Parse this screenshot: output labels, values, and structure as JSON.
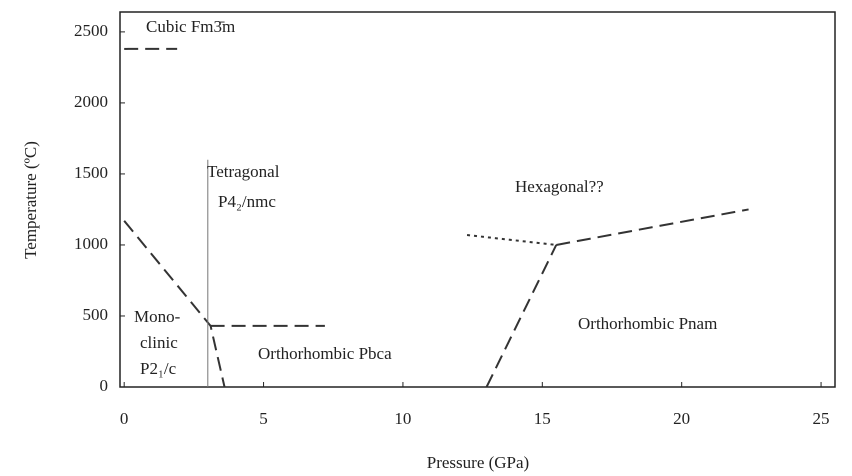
{
  "chart_data": {
    "type": "line",
    "xlabel": "Pressure (GPa)",
    "ylabel": "Temperature (ºC)",
    "xlim": [
      -0.15,
      25.5
    ],
    "ylim": [
      0,
      2640
    ],
    "xticks": [
      0,
      5,
      10,
      15,
      20,
      25
    ],
    "yticks": [
      0,
      500,
      1000,
      1500,
      2000,
      2500
    ],
    "grid": false,
    "series": [
      {
        "color": "#333333",
        "dash": "dashed",
        "x": [
          0,
          1.9
        ],
        "values": [
          2380,
          2380
        ]
      },
      {
        "color": "#333333",
        "dash": "dashed",
        "x": [
          0,
          3.1,
          3.6
        ],
        "values": [
          1170,
          430,
          0
        ]
      },
      {
        "color": "#777777",
        "dash": "solid",
        "x": [
          3,
          3
        ],
        "values": [
          1600,
          0
        ]
      },
      {
        "color": "#333333",
        "dash": "dashed",
        "x": [
          3.1,
          7.2
        ],
        "values": [
          430,
          430
        ]
      },
      {
        "color": "#333333",
        "dash": "dashed",
        "x": [
          13,
          15.5
        ],
        "values": [
          0,
          1000
        ]
      },
      {
        "color": "#333333",
        "dash": "dotted",
        "x": [
          12.3,
          15.5
        ],
        "values": [
          1070,
          1000
        ]
      },
      {
        "color": "#333333",
        "dash": "dashed",
        "x": [
          15.5,
          22.4
        ],
        "values": [
          1000,
          1250
        ]
      }
    ],
    "annotations": [
      "Cubic  Fm3̄m",
      "Tetragonal",
      "P4₂/nmc",
      "Hexagonal??",
      "Mono-",
      "clinic",
      "P2₁/c",
      "Orthorhombic  Pbca",
      "Orthorhombic  Pnam"
    ]
  }
}
